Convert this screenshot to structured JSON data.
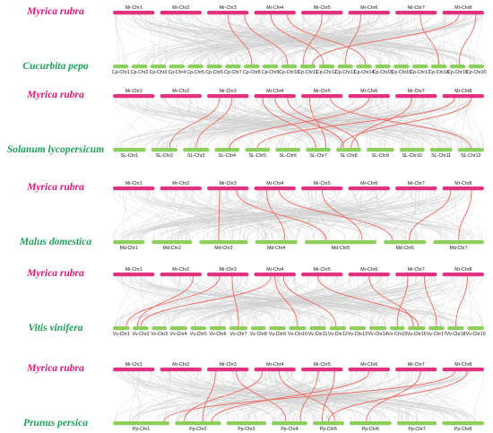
{
  "colors": {
    "reference_species": "#d6197a",
    "reference_bar": "#e0327f",
    "target_species": "#1f9e5a",
    "target_bar": "#8ccf5a",
    "background_links": "#cfcfcf",
    "highlight_links": "#ef6a62"
  },
  "panels": [
    {
      "reference_species": "Myrica rubra",
      "target_species": "Cucurbita pepo",
      "reference_chromosomes": [
        "Mr-Chr1",
        "Mr-Chr2",
        "Mr-Chr3",
        "Mr-Chr4",
        "Mr-Chr5",
        "Mr-Chr6",
        "Mr-Chr7",
        "Mr-Chr8"
      ],
      "target_chromosomes": [
        "Cp-Chr1",
        "Cp-Chr2",
        "Cp-Chr3",
        "Cp-Chr4",
        "Cp-Chr5",
        "Cp-Chr6",
        "Cp-Chr7",
        "Cp-Chr8",
        "Cp-Chr9",
        "Cp-Chr10",
        "Cp-Chr11",
        "Cp-Chr12",
        "Cp-Chr13",
        "Cp-Chr14",
        "Cp-Chr15",
        "Cp-Chr16",
        "Cp-Chr17",
        "Cp-Chr18",
        "Cp-Chr19",
        "Cp-Chr20"
      ]
    },
    {
      "reference_species": "Myrica rubra",
      "target_species": "Solanum lycopersicum",
      "reference_chromosomes": [
        "Mr-Chr1",
        "Mr-Chr2",
        "Mr-Chr3",
        "Mr-Chr4",
        "Mr-Chr5",
        "Mr-Chr6",
        "Mr-Chr7",
        "Mr-Chr8"
      ],
      "target_chromosomes": [
        "SL-Chr1",
        "SL-Chr2",
        "SL-Chr3",
        "SL-Chr4",
        "SL-Chr5",
        "SL-Chr6",
        "SL-Chr7",
        "SL-Chr8",
        "SL-Chr9",
        "SL-Chr10",
        "SL-Chr11",
        "SL-Chr12"
      ]
    },
    {
      "reference_species": "Myrica rubra",
      "target_species": "Malus domestica",
      "reference_chromosomes": [
        "Mr-Chr1",
        "Mr-Chr2",
        "Mr-Chr3",
        "Mr-Chr4",
        "Mr-Chr5",
        "Mr-Chr6",
        "Mr-Chr7",
        "Mr-Chr8"
      ],
      "target_chromosomes": [
        "Md-Chr1",
        "Md-Chr2",
        "Md-Chr3",
        "Md-Chr4",
        "Md-Chr5",
        "Md-Chr6",
        "Md-Chr7"
      ]
    },
    {
      "reference_species": "Myrica rubra",
      "target_species": "Vitis vinifera",
      "reference_chromosomes": [
        "Mr-Chr1",
        "Mr-Chr2",
        "Mr-Chr3",
        "Mr-Chr4",
        "Mr-Chr5",
        "Mr-Chr6",
        "Mr-Chr7",
        "Mr-Chr8"
      ],
      "target_chromosomes": [
        "Vv-Chr1",
        "Vv-Chr2",
        "Vv-Chr3",
        "Vv-Chr4",
        "Vv-Chr5",
        "Vv-Chr6",
        "Vv-Chr7",
        "Vv-Chr8",
        "Vv-Chr9",
        "Vv-Chr10",
        "Vv-Chr11",
        "Vv-Chr12",
        "Vv-Chr13",
        "Vv-Chr14",
        "Vv-Chr15",
        "Vv-Chr16",
        "Vv-Chr17",
        "Vv-Chr18",
        "Vv-Chr19"
      ]
    },
    {
      "reference_species": "Myrica rubra",
      "target_species": "Prunus persica",
      "reference_chromosomes": [
        "Mr-Chr1",
        "Mr-Chr2",
        "Mr-Chr3",
        "Mr-Chr4",
        "Mr-Chr5",
        "Mr-Chr6",
        "Mr-Chr7",
        "Mr-Chr8"
      ],
      "target_chromosomes": [
        "Pp-Chr1",
        "Pp-Chr2",
        "Pp-Chr3",
        "Pp-Chr4",
        "Pp-Chr5",
        "Pp-Chr6",
        "Pp-Chr7",
        "Pp-Chr8"
      ]
    }
  ]
}
